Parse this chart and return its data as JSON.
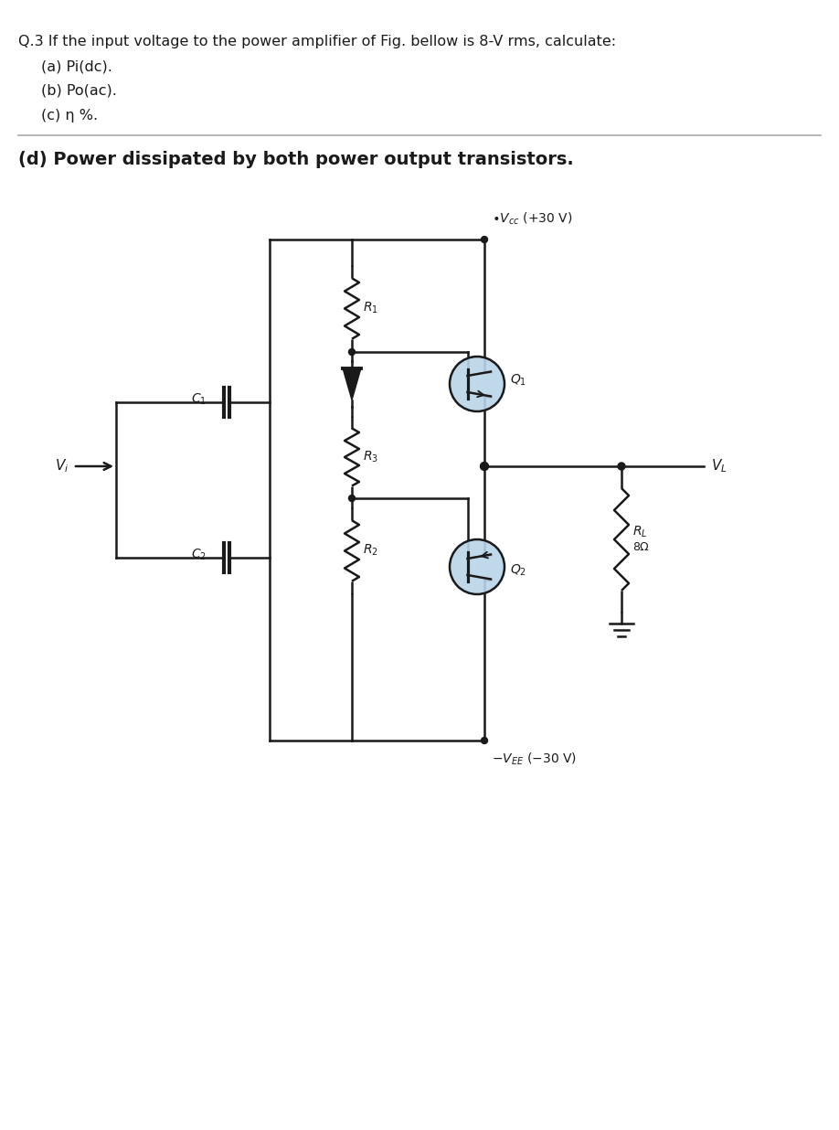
{
  "title_text": "Q.3 If the input voltage to the power amplifier of Fig. bellow is 8-V rms, calculate:",
  "item_a": "(a) Pi(dc).",
  "item_b": "(b) Po(ac).",
  "item_c": "(c) η %.",
  "subtitle": "(d) Power dissipated by both power output transistors.",
  "bg_color": "#ffffff",
  "line_color": "#1a1a1a",
  "transistor_fill": "#b8d4e8",
  "divider_color": "#aaaaaa"
}
